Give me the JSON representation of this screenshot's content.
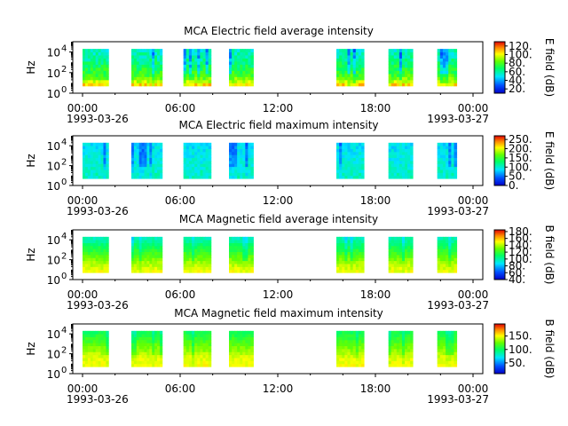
{
  "chart_data": [
    {
      "type": "heatmap",
      "title": "MCA  Electric field average intensity",
      "ylabel": "Hz",
      "yscale": "log",
      "ylim": [
        1,
        100000
      ],
      "yticks": [
        {
          "value": 1,
          "base": "10",
          "exp": "0"
        },
        {
          "value": 100,
          "base": "10",
          "exp": "2"
        },
        {
          "value": 10000,
          "base": "10",
          "exp": "4"
        }
      ],
      "xticks": [
        {
          "hour": 0,
          "label": "00:00"
        },
        {
          "hour": 6,
          "label": "06:00"
        },
        {
          "hour": 12,
          "label": "12:00"
        },
        {
          "hour": 18,
          "label": "18:00"
        },
        {
          "hour": 24,
          "label": "00:00"
        }
      ],
      "xdates": [
        "1993-03-26",
        "1993-03-27"
      ],
      "xlim_hours": [
        -0.6,
        24.6
      ],
      "freq_range_hz": [
        5,
        20000
      ],
      "colorbar": {
        "label": "E field (dB)",
        "min": 10,
        "max": 130,
        "ticks": [
          20,
          40,
          60,
          80,
          100,
          120
        ],
        "tick_labels": [
          "20.",
          "40.",
          "60.",
          "80.",
          "100.",
          "120."
        ]
      },
      "profile": [
        110,
        80,
        70,
        60,
        55
      ],
      "noise": 9,
      "seed": 11,
      "data_segments_hours": [
        [
          0,
          1.6
        ],
        [
          3.0,
          4.9
        ],
        [
          6.2,
          7.9
        ],
        [
          9.0,
          10.5
        ],
        [
          15.6,
          17.3
        ],
        [
          18.8,
          20.3
        ],
        [
          21.8,
          23.0
        ]
      ]
    },
    {
      "type": "heatmap",
      "title": "MCA  Electric field maximum intensity",
      "ylabel": "Hz",
      "yscale": "log",
      "ylim": [
        1,
        100000
      ],
      "yticks": [
        {
          "value": 1,
          "base": "10",
          "exp": "0"
        },
        {
          "value": 100,
          "base": "10",
          "exp": "2"
        },
        {
          "value": 10000,
          "base": "10",
          "exp": "4"
        }
      ],
      "xticks": [
        {
          "hour": 0,
          "label": "00:00"
        },
        {
          "hour": 6,
          "label": "06:00"
        },
        {
          "hour": 12,
          "label": "12:00"
        },
        {
          "hour": 18,
          "label": "18:00"
        },
        {
          "hour": 24,
          "label": "00:00"
        }
      ],
      "xdates": [
        "1993-03-26",
        "1993-03-27"
      ],
      "xlim_hours": [
        -0.6,
        24.6
      ],
      "freq_range_hz": [
        5,
        20000
      ],
      "colorbar": {
        "label": "E field (dB)",
        "min": 0,
        "max": 270,
        "ticks": [
          0,
          50,
          100,
          150,
          200,
          250
        ],
        "tick_labels": [
          "0.",
          "50.",
          "100.",
          "150.",
          "200.",
          "250."
        ]
      },
      "profile": [
        105,
        100,
        95,
        90,
        85
      ],
      "noise": 14,
      "seed": 23,
      "data_segments_hours": [
        [
          0,
          1.6
        ],
        [
          3.0,
          4.9
        ],
        [
          6.2,
          7.9
        ],
        [
          9.0,
          10.5
        ],
        [
          15.6,
          17.3
        ],
        [
          18.8,
          20.3
        ],
        [
          21.8,
          23.0
        ]
      ]
    },
    {
      "type": "heatmap",
      "title": "MCA  Magnetic field average intensity",
      "ylabel": "Hz",
      "yscale": "log",
      "ylim": [
        1,
        100000
      ],
      "yticks": [
        {
          "value": 1,
          "base": "10",
          "exp": "0"
        },
        {
          "value": 100,
          "base": "10",
          "exp": "2"
        },
        {
          "value": 10000,
          "base": "10",
          "exp": "4"
        }
      ],
      "xticks": [
        {
          "hour": 0,
          "label": "00:00"
        },
        {
          "hour": 6,
          "label": "06:00"
        },
        {
          "hour": 12,
          "label": "12:00"
        },
        {
          "hour": 18,
          "label": "18:00"
        },
        {
          "hour": 24,
          "label": "00:00"
        }
      ],
      "xdates": [
        "1993-03-26",
        "1993-03-27"
      ],
      "xlim_hours": [
        -0.6,
        24.6
      ],
      "freq_range_hz": [
        5,
        20000
      ],
      "colorbar": {
        "label": "B field (dB)",
        "min": 40,
        "max": 185,
        "ticks": [
          40,
          60,
          80,
          100,
          120,
          140,
          160,
          180
        ],
        "tick_labels": [
          "40.",
          "60.",
          "80.",
          "100.",
          "120.",
          "140.",
          "160.",
          "180."
        ]
      },
      "profile": [
        150,
        140,
        125,
        110,
        95
      ],
      "noise": 5,
      "seed": 37,
      "data_segments_hours": [
        [
          0,
          1.6
        ],
        [
          3.0,
          4.9
        ],
        [
          6.2,
          7.9
        ],
        [
          9.0,
          10.5
        ],
        [
          15.6,
          17.3
        ],
        [
          18.8,
          20.3
        ],
        [
          21.8,
          23.0
        ]
      ]
    },
    {
      "type": "heatmap",
      "title": "MCA  Magnetic field maximum intensity",
      "ylabel": "Hz",
      "yscale": "log",
      "ylim": [
        1,
        100000
      ],
      "yticks": [
        {
          "value": 1,
          "base": "10",
          "exp": "0"
        },
        {
          "value": 100,
          "base": "10",
          "exp": "2"
        },
        {
          "value": 10000,
          "base": "10",
          "exp": "4"
        }
      ],
      "xticks": [
        {
          "hour": 0,
          "label": "00:00"
        },
        {
          "hour": 6,
          "label": "06:00"
        },
        {
          "hour": 12,
          "label": "12:00"
        },
        {
          "hour": 18,
          "label": "18:00"
        },
        {
          "hour": 24,
          "label": "00:00"
        }
      ],
      "xdates": [
        "1993-03-26",
        "1993-03-27"
      ],
      "xlim_hours": [
        -0.6,
        24.6
      ],
      "freq_range_hz": [
        5,
        20000
      ],
      "colorbar": {
        "label": "B field (dB)",
        "min": 10,
        "max": 195,
        "ticks": [
          50,
          100,
          150
        ],
        "tick_labels": [
          "50.",
          "100.",
          "150."
        ]
      },
      "profile": [
        150,
        145,
        130,
        115,
        100
      ],
      "noise": 6,
      "seed": 53,
      "data_segments_hours": [
        [
          0,
          1.6
        ],
        [
          3.0,
          4.9
        ],
        [
          6.2,
          7.9
        ],
        [
          9.0,
          10.5
        ],
        [
          15.6,
          17.3
        ],
        [
          18.8,
          20.3
        ],
        [
          21.8,
          23.0
        ]
      ]
    }
  ]
}
